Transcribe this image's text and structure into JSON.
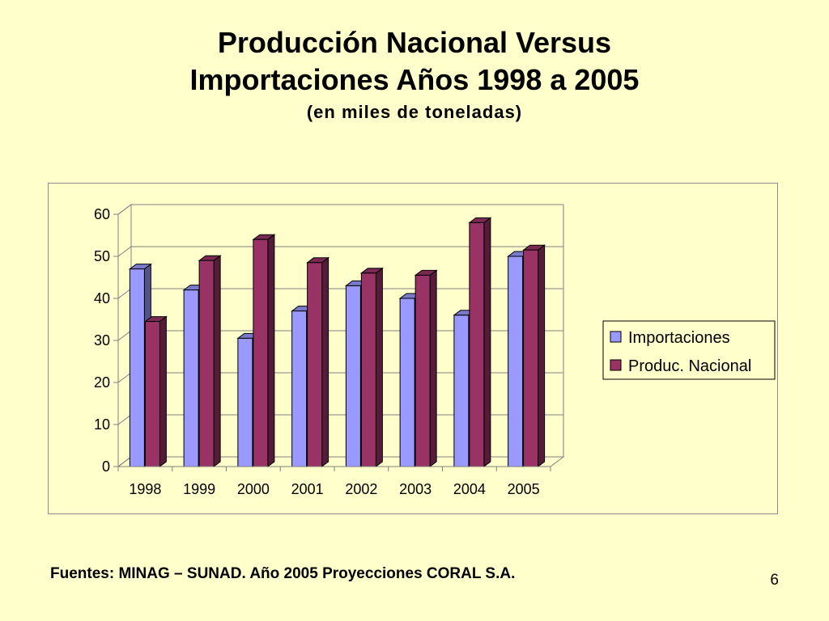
{
  "title": {
    "line1": "Producción Nacional Versus",
    "line2": "Importaciones  Años 1998 a 2005",
    "line3": "(en miles de toneladas)"
  },
  "footer": "Fuentes: MINAG – SUNAD. Año 2005 Proyecciones CORAL S.A.",
  "page_number": "6",
  "chart_data": {
    "type": "bar",
    "categories": [
      "1998",
      "1999",
      "2000",
      "2001",
      "2002",
      "2003",
      "2004",
      "2005"
    ],
    "series": [
      {
        "name": "Importaciones",
        "values": [
          47,
          42,
          30.5,
          37,
          43,
          40,
          36,
          50
        ],
        "color": "#9999ff"
      },
      {
        "name": "Produc. Nacional",
        "values": [
          34.5,
          49,
          54,
          48.5,
          46,
          45.5,
          58,
          51.5
        ],
        "color": "#993366"
      }
    ],
    "ylim": [
      0,
      60
    ],
    "yticks": [
      0,
      10,
      20,
      30,
      40,
      50,
      60
    ],
    "grid": true,
    "legend_position": "right",
    "style": "3d-clustered-column"
  }
}
